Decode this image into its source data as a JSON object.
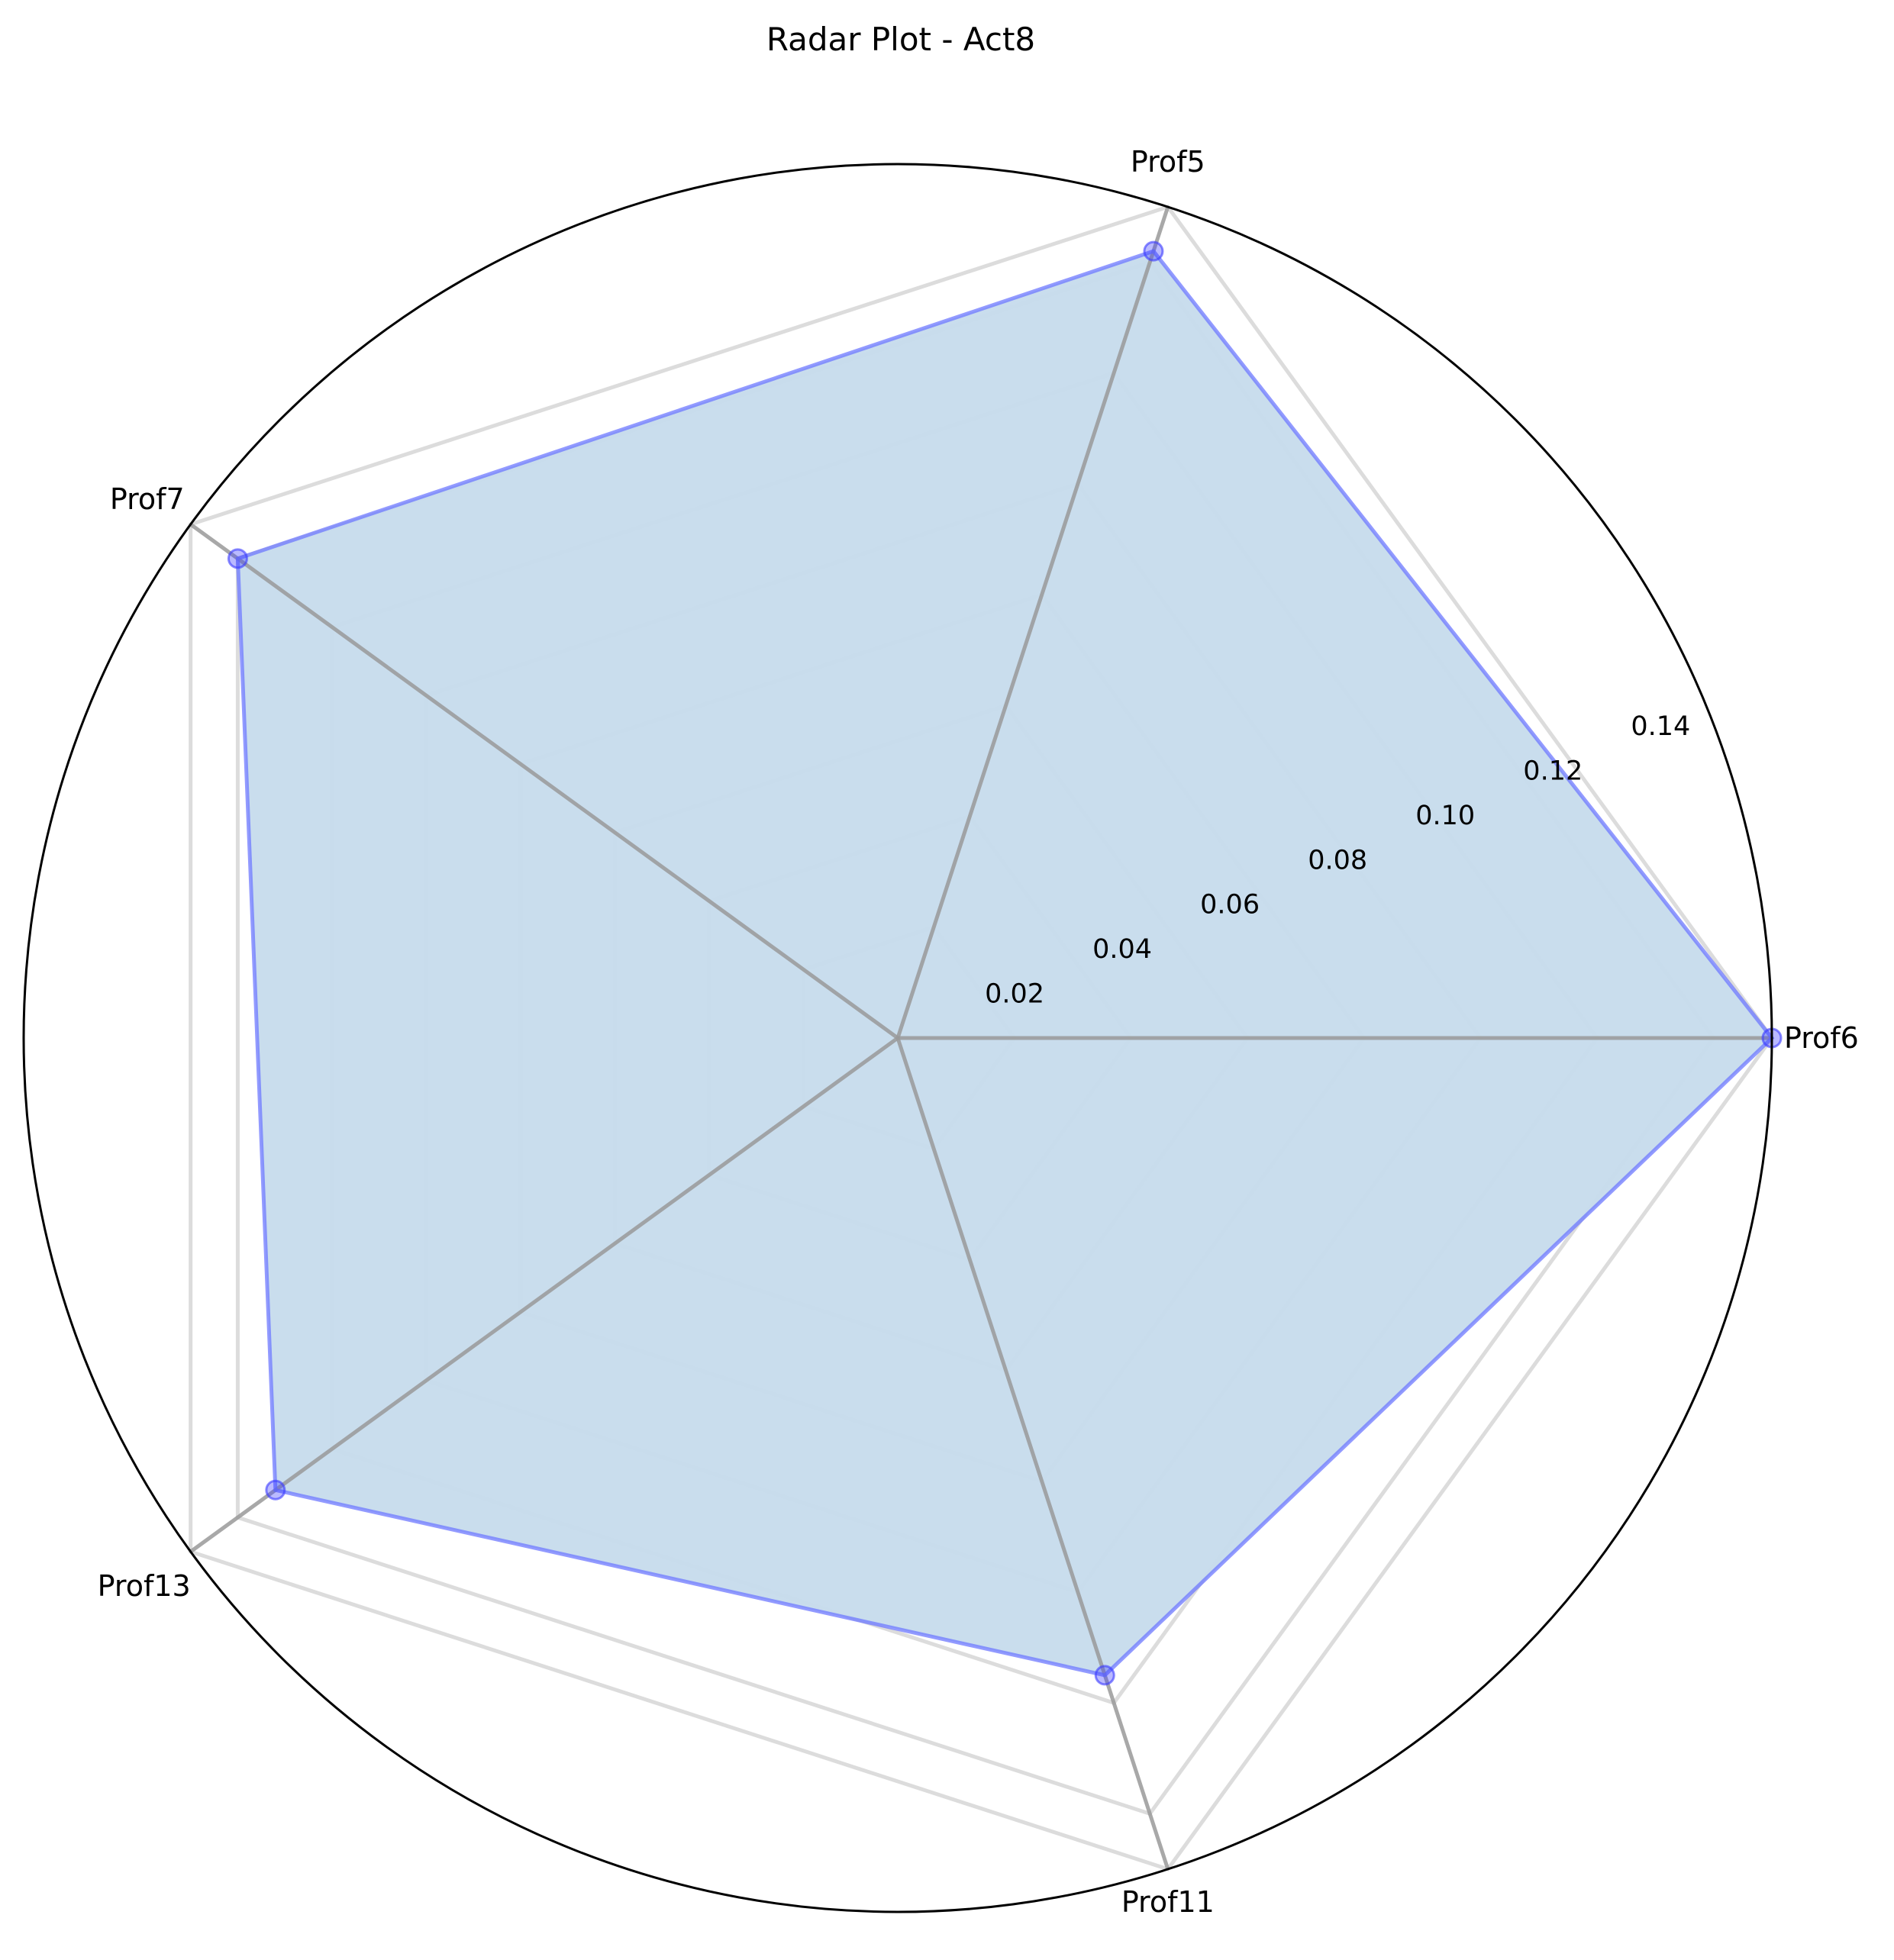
{
  "chart_data": {
    "type": "radar",
    "title": "Radar Plot - Act8",
    "categories": [
      "Prof6",
      "Prof5",
      "Prof7",
      "Prof13",
      "Prof11"
    ],
    "series": [
      {
        "values": [
          0.15,
          0.142,
          0.14,
          0.132,
          0.115
        ]
      }
    ],
    "rlim": [
      0,
      0.15
    ],
    "r_ticks": [
      0.02,
      0.04,
      0.06,
      0.08,
      0.1,
      0.12,
      0.14
    ],
    "r_tick_labels": [
      "0.02",
      "0.04",
      "0.06",
      "0.08",
      "0.10",
      "0.12",
      "0.14"
    ],
    "grid": true,
    "colors": {
      "series_line": "#6e78ff",
      "series_fill": "#c6dbec",
      "marker": "#3a3aff",
      "spoke": "#999999",
      "grid_ring": "#dcdcdc",
      "outer_circle": "#000000"
    }
  }
}
